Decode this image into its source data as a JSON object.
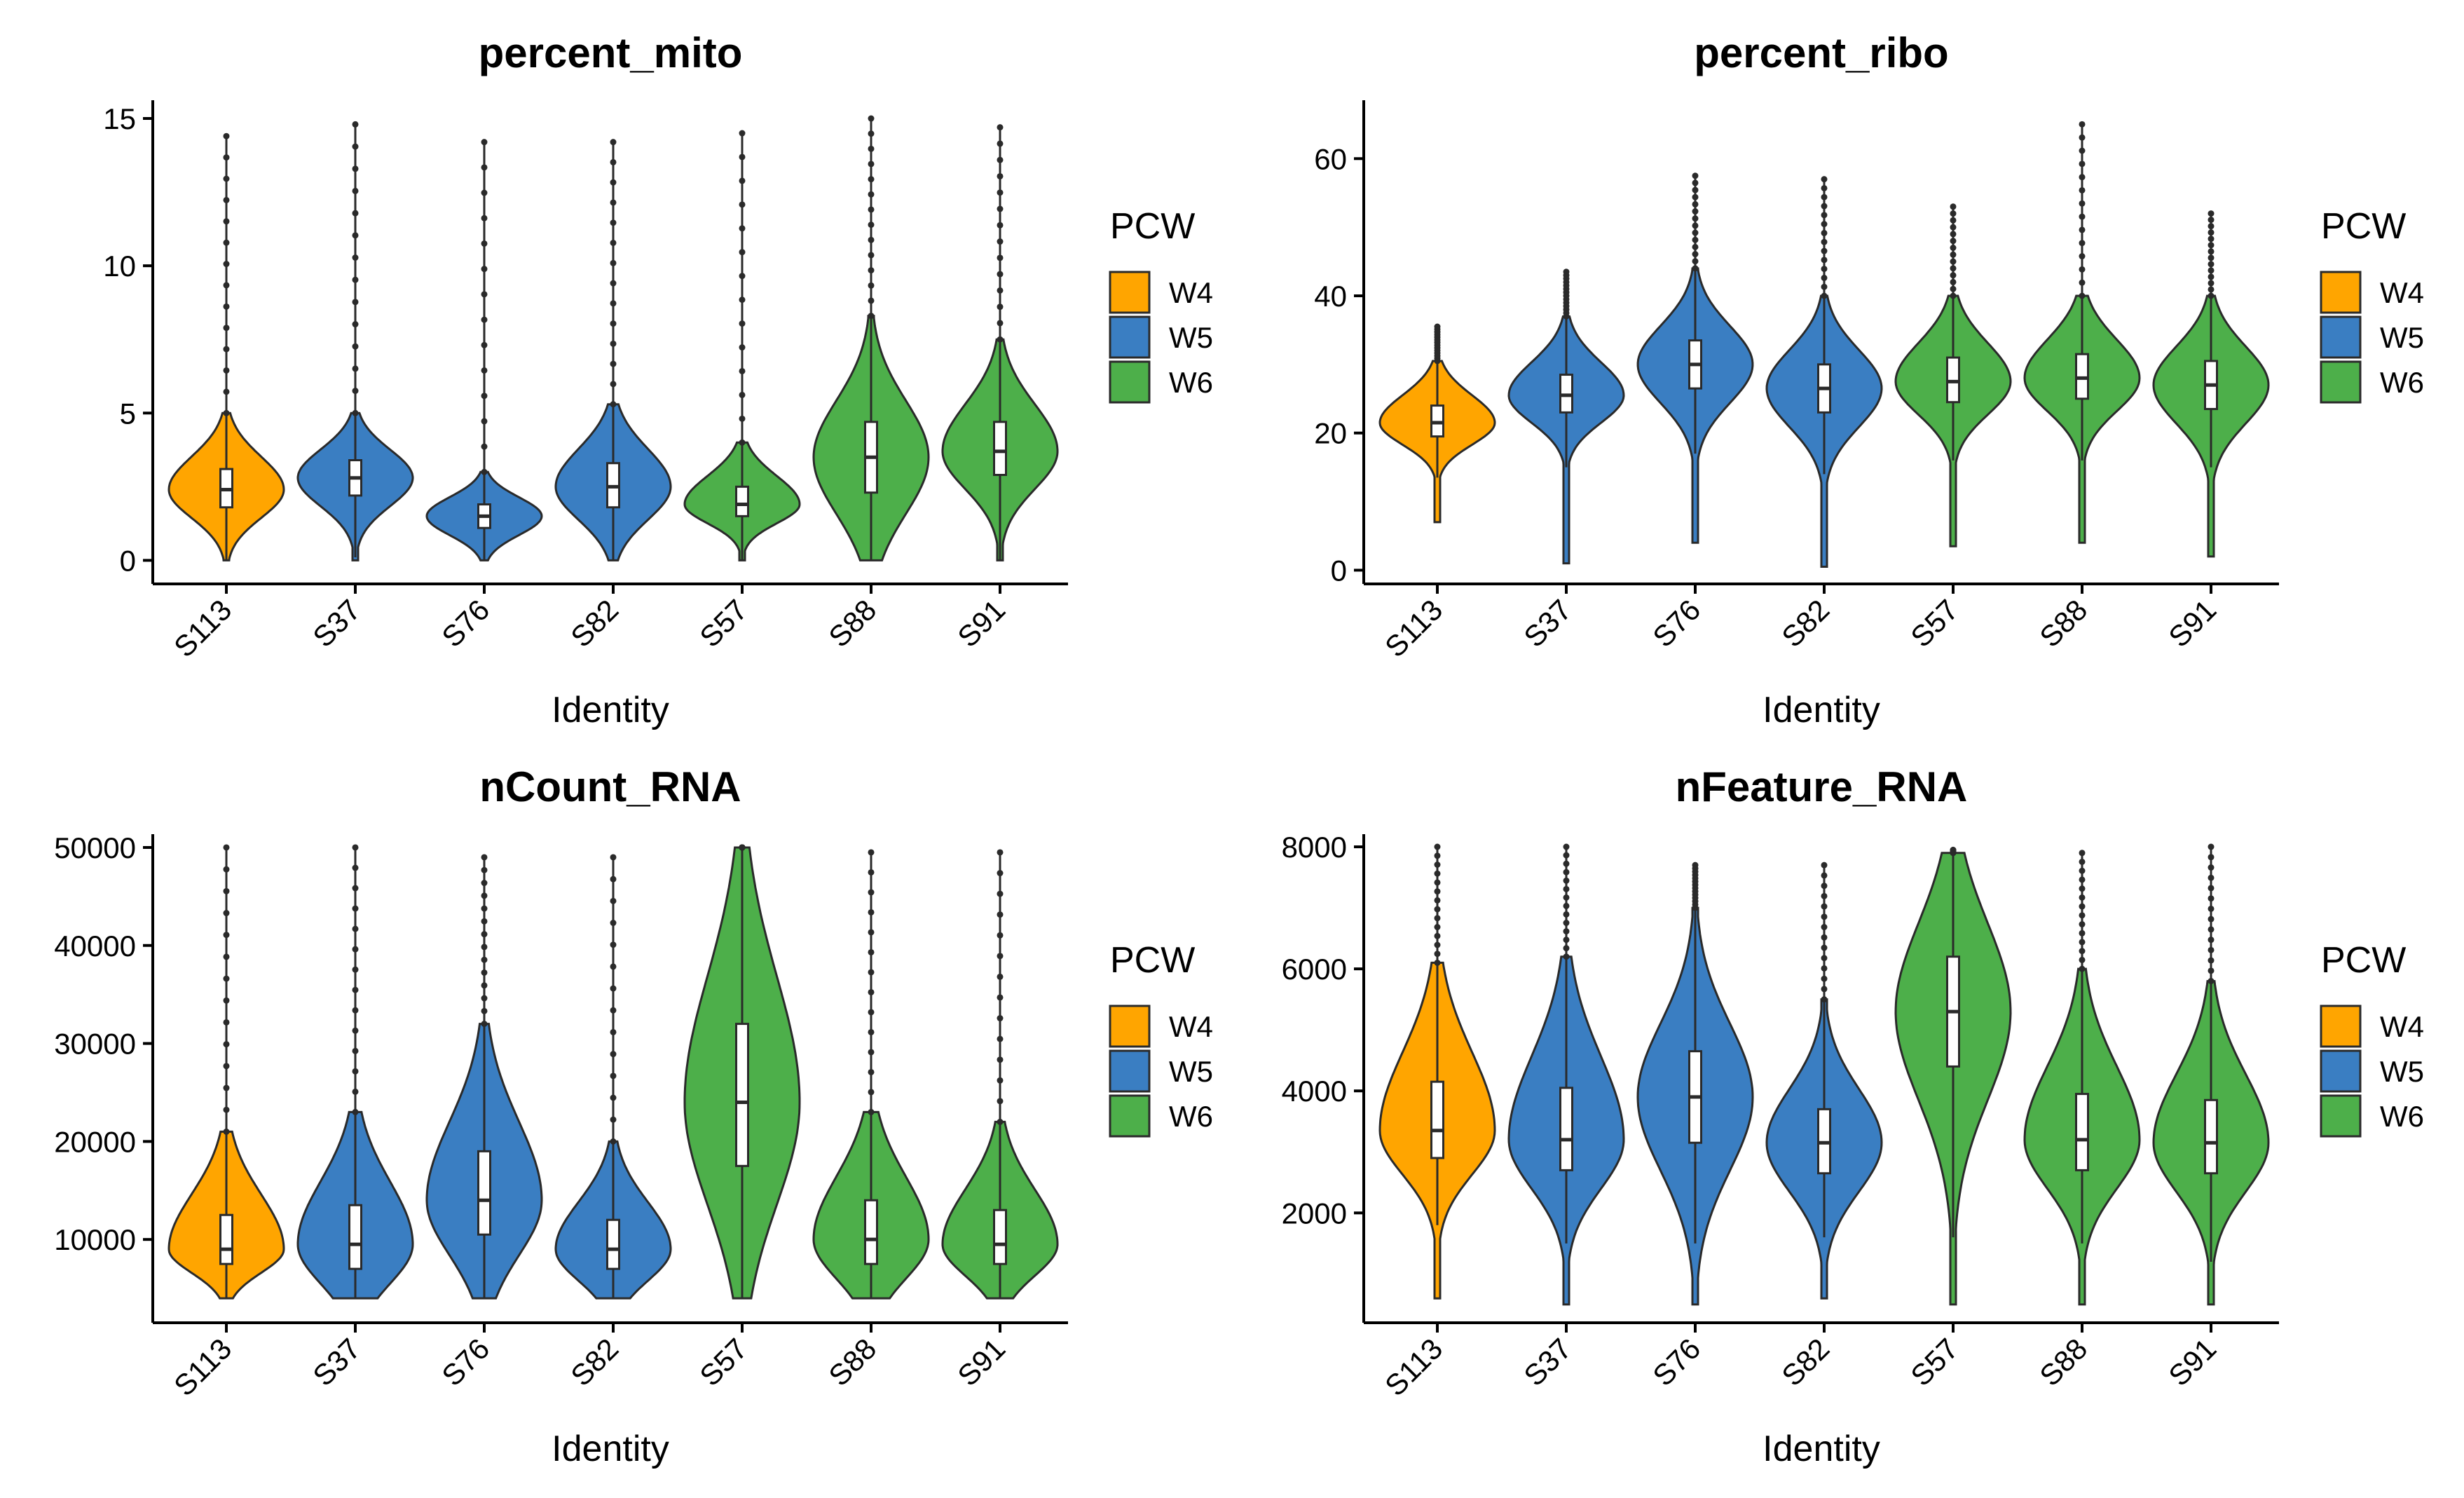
{
  "colors": {
    "W4": "#FFA500",
    "W5": "#3A7EC2",
    "W6": "#4DAF4A"
  },
  "chart_data": [
    {
      "type": "violin",
      "title": "percent_mito",
      "xlabel": "Identity",
      "ylabel": "",
      "ylim": [
        -0.8,
        15.5
      ],
      "yticks": [
        0,
        5,
        10,
        15
      ],
      "categories": [
        "S113",
        "S37",
        "S76",
        "S82",
        "S57",
        "S88",
        "S91"
      ],
      "groups": [
        "W4",
        "W5",
        "W5",
        "W5",
        "W6",
        "W6",
        "W6"
      ],
      "violins": [
        {
          "q1": 1.8,
          "median": 2.4,
          "q3": 3.1,
          "whisker_low": 0.0,
          "whisker_high": 5.0,
          "min": 0.0,
          "max": 14.4
        },
        {
          "q1": 2.2,
          "median": 2.8,
          "q3": 3.4,
          "whisker_low": 0.1,
          "whisker_high": 5.0,
          "min": 0.0,
          "max": 14.8
        },
        {
          "q1": 1.1,
          "median": 1.5,
          "q3": 1.9,
          "whisker_low": 0.0,
          "whisker_high": 3.0,
          "min": 0.0,
          "max": 14.2
        },
        {
          "q1": 1.8,
          "median": 2.5,
          "q3": 3.3,
          "whisker_low": 0.0,
          "whisker_high": 5.3,
          "min": 0.0,
          "max": 14.2
        },
        {
          "q1": 1.5,
          "median": 1.9,
          "q3": 2.5,
          "whisker_low": 0.0,
          "whisker_high": 4.0,
          "min": 0.0,
          "max": 14.5
        },
        {
          "q1": 2.3,
          "median": 3.5,
          "q3": 4.7,
          "whisker_low": 0.0,
          "whisker_high": 8.3,
          "min": 0.0,
          "max": 15.0
        },
        {
          "q1": 2.9,
          "median": 3.7,
          "q3": 4.7,
          "whisker_low": 0.0,
          "whisker_high": 7.5,
          "min": 0.0,
          "max": 14.7
        }
      ]
    },
    {
      "type": "violin",
      "title": "percent_ribo",
      "xlabel": "Identity",
      "ylabel": "",
      "ylim": [
        -2,
        68
      ],
      "yticks": [
        0,
        20,
        40,
        60
      ],
      "categories": [
        "S113",
        "S37",
        "S76",
        "S82",
        "S57",
        "S88",
        "S91"
      ],
      "groups": [
        "W4",
        "W5",
        "W5",
        "W5",
        "W6",
        "W6",
        "W6"
      ],
      "violins": [
        {
          "q1": 19.5,
          "median": 21.5,
          "q3": 24.0,
          "whisker_low": 13.5,
          "whisker_high": 30.5,
          "min": 7.0,
          "max": 35.5
        },
        {
          "q1": 23.0,
          "median": 25.5,
          "q3": 28.5,
          "whisker_low": 15.0,
          "whisker_high": 37.0,
          "min": 1.0,
          "max": 43.5
        },
        {
          "q1": 26.5,
          "median": 30.0,
          "q3": 33.5,
          "whisker_low": 17.0,
          "whisker_high": 44.0,
          "min": 4.0,
          "max": 57.5
        },
        {
          "q1": 23.0,
          "median": 26.5,
          "q3": 30.0,
          "whisker_low": 14.0,
          "whisker_high": 40.0,
          "min": 0.5,
          "max": 57.0
        },
        {
          "q1": 24.5,
          "median": 27.5,
          "q3": 31.0,
          "whisker_low": 16.0,
          "whisker_high": 40.0,
          "min": 3.5,
          "max": 53.0
        },
        {
          "q1": 25.0,
          "median": 28.0,
          "q3": 31.5,
          "whisker_low": 16.0,
          "whisker_high": 40.0,
          "min": 4.0,
          "max": 65.0
        },
        {
          "q1": 23.5,
          "median": 27.0,
          "q3": 30.5,
          "whisker_low": 15.0,
          "whisker_high": 40.0,
          "min": 2.0,
          "max": 52.0
        }
      ]
    },
    {
      "type": "violin",
      "title": "nCount_RNA",
      "xlabel": "Identity",
      "ylabel": "",
      "ylim": [
        1500,
        51000
      ],
      "yticks": [
        10000,
        20000,
        30000,
        40000,
        50000
      ],
      "categories": [
        "S113",
        "S37",
        "S76",
        "S82",
        "S57",
        "S88",
        "S91"
      ],
      "groups": [
        "W4",
        "W5",
        "W5",
        "W5",
        "W6",
        "W6",
        "W6"
      ],
      "violins": [
        {
          "q1": 7500,
          "median": 9000,
          "q3": 12500,
          "whisker_low": 4000,
          "whisker_high": 21000,
          "min": 4000,
          "max": 50000
        },
        {
          "q1": 7000,
          "median": 9500,
          "q3": 13500,
          "whisker_low": 4000,
          "whisker_high": 23000,
          "min": 4000,
          "max": 50000
        },
        {
          "q1": 10500,
          "median": 14000,
          "q3": 19000,
          "whisker_low": 4000,
          "whisker_high": 32000,
          "min": 4000,
          "max": 49000
        },
        {
          "q1": 7000,
          "median": 9000,
          "q3": 12000,
          "whisker_low": 4000,
          "whisker_high": 20000,
          "min": 4000,
          "max": 49000
        },
        {
          "q1": 17500,
          "median": 24000,
          "q3": 32000,
          "whisker_low": 4000,
          "whisker_high": 50000,
          "min": 4000,
          "max": 50000
        },
        {
          "q1": 7500,
          "median": 10000,
          "q3": 14000,
          "whisker_low": 4000,
          "whisker_high": 23000,
          "min": 4000,
          "max": 49500
        },
        {
          "q1": 7500,
          "median": 9500,
          "q3": 13000,
          "whisker_low": 4000,
          "whisker_high": 22000,
          "min": 4000,
          "max": 49500
        }
      ]
    },
    {
      "type": "violin",
      "title": "nFeature_RNA",
      "xlabel": "Identity",
      "ylabel": "",
      "ylim": [
        200,
        8150
      ],
      "yticks": [
        2000,
        4000,
        6000,
        8000
      ],
      "categories": [
        "S113",
        "S37",
        "S76",
        "S82",
        "S57",
        "S88",
        "S91"
      ],
      "groups": [
        "W4",
        "W5",
        "W5",
        "W5",
        "W6",
        "W6",
        "W6"
      ],
      "violins": [
        {
          "q1": 2900,
          "median": 3350,
          "q3": 4150,
          "whisker_low": 1800,
          "whisker_high": 6100,
          "min": 600,
          "max": 8000
        },
        {
          "q1": 2700,
          "median": 3200,
          "q3": 4050,
          "whisker_low": 1500,
          "whisker_high": 6200,
          "min": 500,
          "max": 8000
        },
        {
          "q1": 3150,
          "median": 3900,
          "q3": 4650,
          "whisker_low": 1500,
          "whisker_high": 7000,
          "min": 500,
          "max": 7700
        },
        {
          "q1": 2650,
          "median": 3150,
          "q3": 3700,
          "whisker_low": 1600,
          "whisker_high": 5500,
          "min": 600,
          "max": 7700
        },
        {
          "q1": 4400,
          "median": 5300,
          "q3": 6200,
          "whisker_low": 1600,
          "whisker_high": 7900,
          "min": 500,
          "max": 7950
        },
        {
          "q1": 2700,
          "median": 3200,
          "q3": 3950,
          "whisker_low": 1500,
          "whisker_high": 6000,
          "min": 500,
          "max": 7900
        },
        {
          "q1": 2650,
          "median": 3150,
          "q3": 3850,
          "whisker_low": 1200,
          "whisker_high": 5800,
          "min": 500,
          "max": 8000
        }
      ]
    }
  ],
  "legend": {
    "title": "PCW",
    "entries": [
      "W4",
      "W5",
      "W6"
    ]
  }
}
